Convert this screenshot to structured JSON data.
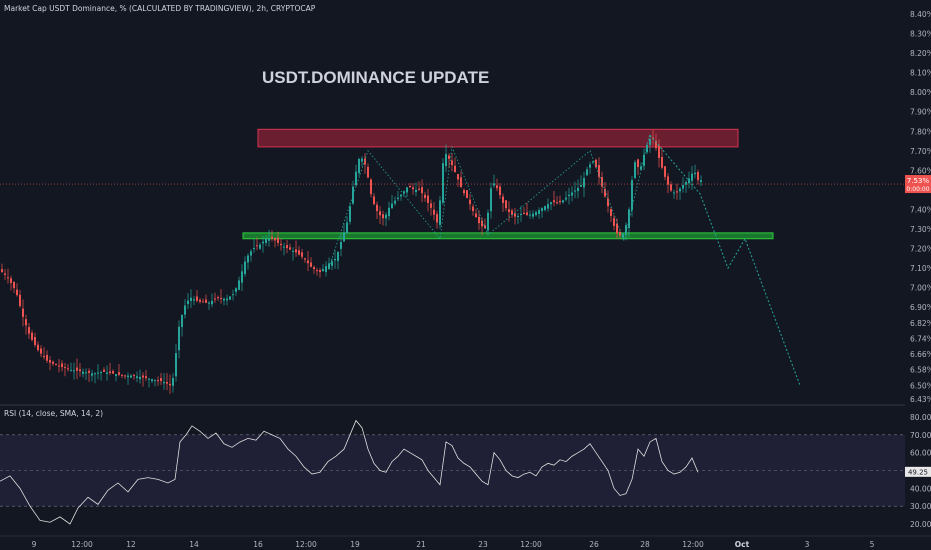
{
  "header": {
    "symbol": "Market Cap USDT Dominance, % (CALCULATED BY TRADINGVIEW), 2h, CRYPTOCAP",
    "rsi_label": "RSI (14, close, SMA, 14, 2)"
  },
  "annotation": {
    "title": "USDT.DOMINANCE  UPDATE"
  },
  "price_badge": {
    "value": "7.53%",
    "sub": "0:00:00"
  },
  "rsi_badge": {
    "value": "49.25"
  },
  "colors": {
    "bg": "#131722",
    "up": "#26a69a",
    "down": "#ef5350",
    "resistance": "#b2243c",
    "support": "#1b8a2f",
    "rsi_band": "#7e57c2"
  },
  "chart_data": [
    {
      "type": "candlestick",
      "title": "",
      "y_ticks": [
        "8.40%",
        "8.30%",
        "8.20%",
        "8.10%",
        "8.00%",
        "7.90%",
        "7.80%",
        "7.70%",
        "7.60%",
        "7.50%",
        "7.40%",
        "7.30%",
        "7.20%",
        "7.10%",
        "7.00%",
        "6.90%",
        "6.82%",
        "6.74%",
        "6.66%",
        "6.58%",
        "6.50%",
        "6.43%"
      ],
      "x_ticks": [
        "9",
        "12:00",
        "12",
        "14",
        "16",
        "12:00",
        "19",
        "21",
        "23",
        "12:00",
        "26",
        "28",
        "12:00",
        "Oct",
        "3",
        "5"
      ],
      "zones": [
        {
          "name": "resistance",
          "y": [
            7.72,
            7.81
          ]
        },
        {
          "name": "support",
          "y": [
            7.25,
            7.28
          ]
        }
      ],
      "path": [
        [
          0,
          7.1
        ],
        [
          10,
          7.05
        ],
        [
          18,
          6.98
        ],
        [
          25,
          6.85
        ],
        [
          32,
          6.75
        ],
        [
          40,
          6.68
        ],
        [
          50,
          6.62
        ],
        [
          60,
          6.6
        ],
        [
          72,
          6.58
        ],
        [
          85,
          6.57
        ],
        [
          95,
          6.56
        ],
        [
          105,
          6.57
        ],
        [
          115,
          6.56
        ],
        [
          125,
          6.55
        ],
        [
          135,
          6.55
        ],
        [
          145,
          6.54
        ],
        [
          155,
          6.53
        ],
        [
          165,
          6.52
        ],
        [
          172,
          6.5
        ],
        [
          176,
          6.55
        ],
        [
          180,
          6.78
        ],
        [
          186,
          6.9
        ],
        [
          192,
          6.95
        ],
        [
          200,
          6.93
        ],
        [
          210,
          6.92
        ],
        [
          220,
          6.95
        ],
        [
          228,
          6.94
        ],
        [
          236,
          6.97
        ],
        [
          242,
          7.05
        ],
        [
          248,
          7.15
        ],
        [
          255,
          7.2
        ],
        [
          262,
          7.22
        ],
        [
          268,
          7.25
        ],
        [
          275,
          7.25
        ],
        [
          282,
          7.22
        ],
        [
          290,
          7.2
        ],
        [
          298,
          7.18
        ],
        [
          306,
          7.15
        ],
        [
          314,
          7.1
        ],
        [
          322,
          7.08
        ],
        [
          330,
          7.12
        ],
        [
          338,
          7.15
        ],
        [
          344,
          7.25
        ],
        [
          350,
          7.35
        ],
        [
          356,
          7.55
        ],
        [
          362,
          7.68
        ],
        [
          368,
          7.62
        ],
        [
          374,
          7.45
        ],
        [
          380,
          7.38
        ],
        [
          386,
          7.35
        ],
        [
          392,
          7.42
        ],
        [
          398,
          7.45
        ],
        [
          404,
          7.48
        ],
        [
          410,
          7.52
        ],
        [
          416,
          7.5
        ],
        [
          422,
          7.5
        ],
        [
          428,
          7.45
        ],
        [
          434,
          7.4
        ],
        [
          440,
          7.32
        ],
        [
          446,
          7.7
        ],
        [
          452,
          7.65
        ],
        [
          458,
          7.58
        ],
        [
          464,
          7.5
        ],
        [
          470,
          7.45
        ],
        [
          476,
          7.38
        ],
        [
          482,
          7.32
        ],
        [
          488,
          7.3
        ],
        [
          494,
          7.55
        ],
        [
          500,
          7.5
        ],
        [
          506,
          7.42
        ],
        [
          512,
          7.38
        ],
        [
          518,
          7.36
        ],
        [
          524,
          7.38
        ],
        [
          530,
          7.37
        ],
        [
          536,
          7.38
        ],
        [
          542,
          7.4
        ],
        [
          548,
          7.42
        ],
        [
          554,
          7.44
        ],
        [
          560,
          7.43
        ],
        [
          566,
          7.45
        ],
        [
          572,
          7.48
        ],
        [
          578,
          7.5
        ],
        [
          584,
          7.53
        ],
        [
          590,
          7.62
        ],
        [
          596,
          7.65
        ],
        [
          602,
          7.55
        ],
        [
          608,
          7.45
        ],
        [
          614,
          7.35
        ],
        [
          618,
          7.28
        ],
        [
          624,
          7.26
        ],
        [
          630,
          7.35
        ],
        [
          636,
          7.65
        ],
        [
          642,
          7.6
        ],
        [
          648,
          7.72
        ],
        [
          654,
          7.78
        ],
        [
          660,
          7.68
        ],
        [
          666,
          7.58
        ],
        [
          672,
          7.5
        ],
        [
          678,
          7.48
        ],
        [
          684,
          7.52
        ],
        [
          690,
          7.55
        ],
        [
          696,
          7.6
        ],
        [
          700,
          7.55
        ]
      ],
      "projection": [
        [
          650,
          7.78
        ],
        [
          700,
          7.48
        ],
        [
          728,
          7.1
        ],
        [
          745,
          7.25
        ],
        [
          800,
          6.5
        ]
      ],
      "last_price": 7.53
    },
    {
      "type": "line",
      "name": "RSI",
      "y_ticks": [
        "80.00",
        "70.00",
        "60.00",
        "50.00",
        "40.00",
        "30.00",
        "20.00"
      ],
      "ylim": [
        20,
        80
      ],
      "bands": [
        30,
        70
      ],
      "values": [
        [
          0,
          44
        ],
        [
          10,
          47
        ],
        [
          20,
          40
        ],
        [
          30,
          30
        ],
        [
          40,
          22
        ],
        [
          50,
          21
        ],
        [
          60,
          24
        ],
        [
          70,
          20
        ],
        [
          78,
          29
        ],
        [
          88,
          35
        ],
        [
          98,
          31
        ],
        [
          108,
          39
        ],
        [
          118,
          43
        ],
        [
          128,
          38
        ],
        [
          138,
          45
        ],
        [
          148,
          46
        ],
        [
          158,
          45
        ],
        [
          168,
          43
        ],
        [
          175,
          45
        ],
        [
          180,
          66
        ],
        [
          186,
          70
        ],
        [
          192,
          75
        ],
        [
          200,
          72
        ],
        [
          208,
          68
        ],
        [
          216,
          71
        ],
        [
          224,
          65
        ],
        [
          232,
          63
        ],
        [
          240,
          66
        ],
        [
          248,
          68
        ],
        [
          256,
          67
        ],
        [
          264,
          72
        ],
        [
          272,
          70
        ],
        [
          280,
          68
        ],
        [
          288,
          62
        ],
        [
          296,
          58
        ],
        [
          304,
          52
        ],
        [
          312,
          48
        ],
        [
          320,
          49
        ],
        [
          328,
          55
        ],
        [
          336,
          58
        ],
        [
          344,
          62
        ],
        [
          350,
          70
        ],
        [
          356,
          78
        ],
        [
          362,
          74
        ],
        [
          368,
          62
        ],
        [
          374,
          54
        ],
        [
          380,
          50
        ],
        [
          386,
          49
        ],
        [
          392,
          55
        ],
        [
          398,
          58
        ],
        [
          404,
          62
        ],
        [
          410,
          60
        ],
        [
          416,
          58
        ],
        [
          422,
          56
        ],
        [
          428,
          50
        ],
        [
          434,
          46
        ],
        [
          440,
          42
        ],
        [
          446,
          66
        ],
        [
          452,
          64
        ],
        [
          458,
          57
        ],
        [
          464,
          54
        ],
        [
          470,
          52
        ],
        [
          476,
          48
        ],
        [
          482,
          44
        ],
        [
          488,
          42
        ],
        [
          494,
          60
        ],
        [
          500,
          56
        ],
        [
          506,
          50
        ],
        [
          512,
          47
        ],
        [
          518,
          46
        ],
        [
          524,
          48
        ],
        [
          530,
          49
        ],
        [
          536,
          47
        ],
        [
          542,
          52
        ],
        [
          548,
          54
        ],
        [
          554,
          53
        ],
        [
          560,
          56
        ],
        [
          566,
          55
        ],
        [
          572,
          58
        ],
        [
          578,
          60
        ],
        [
          584,
          62
        ],
        [
          590,
          65
        ],
        [
          596,
          60
        ],
        [
          602,
          55
        ],
        [
          608,
          50
        ],
        [
          614,
          40
        ],
        [
          620,
          36
        ],
        [
          626,
          37
        ],
        [
          632,
          45
        ],
        [
          638,
          62
        ],
        [
          644,
          58
        ],
        [
          650,
          66
        ],
        [
          656,
          68
        ],
        [
          662,
          55
        ],
        [
          668,
          50
        ],
        [
          674,
          48
        ],
        [
          680,
          49
        ],
        [
          686,
          52
        ],
        [
          692,
          57
        ],
        [
          698,
          49
        ]
      ],
      "last_value": 49.25
    }
  ]
}
